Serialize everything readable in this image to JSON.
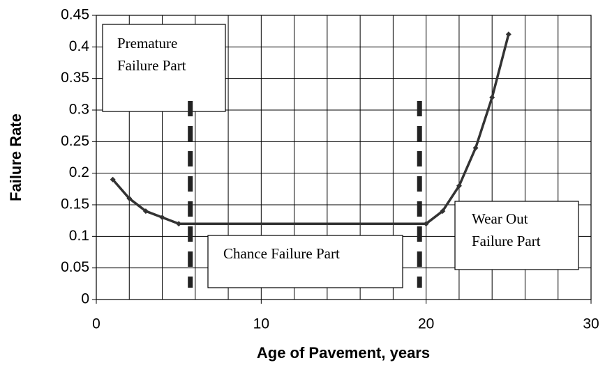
{
  "chart_data": {
    "type": "line",
    "x_label": "Age of Pavement, years",
    "y_label": "Failure Rate",
    "x": [
      1,
      2,
      3,
      4,
      5,
      20,
      21,
      22,
      23,
      24,
      25
    ],
    "series": [
      {
        "color": "#333333",
        "values": [
          0.19,
          0.16,
          0.14,
          0.13,
          0.12,
          0.12,
          0.14,
          0.18,
          0.24,
          0.32,
          0.42
        ]
      }
    ],
    "xlim": [
      0,
      30
    ],
    "xticks": [
      0,
      10,
      20,
      30
    ],
    "ylim": [
      0,
      0.45
    ],
    "yticks": [
      0,
      0.05,
      0.1,
      0.15,
      0.2,
      0.25,
      0.3,
      0.35,
      0.4,
      0.45
    ],
    "x_grid_step": 2,
    "grid": true,
    "boundaries": [
      5.7,
      19.6
    ],
    "annotations": [
      {
        "lines": [
          "Premature",
          "Failure Part"
        ]
      },
      {
        "lines": [
          "Chance Failure Part"
        ]
      },
      {
        "lines": [
          "Wear Out",
          "Failure Part"
        ]
      }
    ]
  }
}
